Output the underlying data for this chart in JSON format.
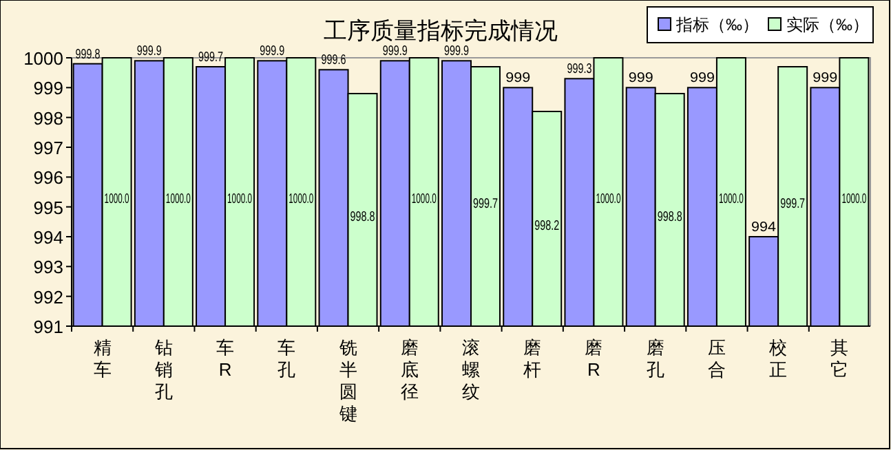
{
  "chart_data": {
    "type": "bar",
    "title": "工序质量指标完成情况",
    "categories": [
      "精车",
      "钻销孔",
      "车R",
      "车孔",
      "铣半圆键",
      "磨底径",
      "滚螺纹",
      "磨杆",
      "磨R",
      "磨孔",
      "压合",
      "校正",
      "其它"
    ],
    "series": [
      {
        "name": "指标（‰）",
        "color": "#9999ff",
        "values": [
          999.8,
          999.9,
          999.7,
          999.9,
          999.6,
          999.9,
          999.9,
          999,
          999.3,
          999,
          999,
          994,
          999
        ],
        "value_labels": [
          "999.8",
          "999.9",
          "999.7",
          "999.9",
          "999.6",
          "999.9",
          "999.9",
          "999",
          "999.3",
          "999",
          "999",
          "994",
          "999"
        ]
      },
      {
        "name": "实际（‰）",
        "color": "#ccffcc",
        "values": [
          1000,
          1000,
          1000,
          1000,
          998.8,
          1000,
          999.7,
          998.2,
          1000,
          998.8,
          1000,
          999.7,
          1000
        ],
        "value_labels": [
          "1000.0",
          "1000.0",
          "1000.0",
          "1000.0",
          "998.8",
          "1000.0",
          "999.7",
          "998.2",
          "1000.0",
          "998.8",
          "1000.0",
          "999.7",
          "1000.0"
        ]
      }
    ],
    "ylim": [
      991,
      1000
    ],
    "yticks": [
      991,
      992,
      993,
      994,
      995,
      996,
      997,
      998,
      999,
      1000
    ],
    "grid": false,
    "legend": "top right"
  }
}
